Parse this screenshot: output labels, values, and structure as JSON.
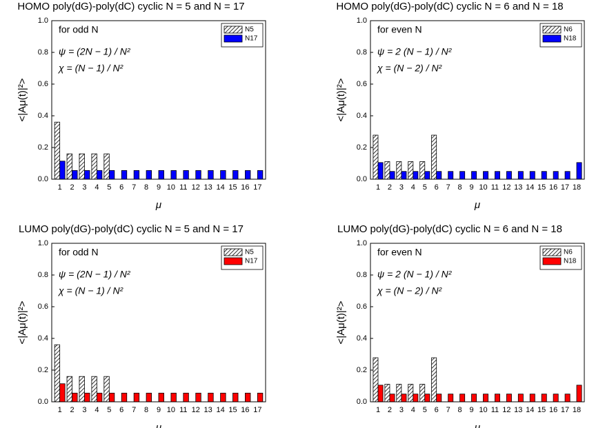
{
  "chart_data": [
    {
      "type": "bar",
      "title": "HOMO poly(dG)-poly(dC) cyclic  N = 5 and N = 17",
      "xlabel": "μ",
      "ylabel": "<|Aμ(t)|²>",
      "annotations": [
        "for odd N",
        "ψ = (2N − 1) / N²",
        "χ = (N − 1) / N²"
      ],
      "categories": [
        "1",
        "2",
        "3",
        "4",
        "5",
        "6",
        "7",
        "8",
        "9",
        "10",
        "11",
        "12",
        "13",
        "14",
        "15",
        "16",
        "17"
      ],
      "series": [
        {
          "name": "N5",
          "color": "#ffffff",
          "hatch": true,
          "values": [
            0.36,
            0.16,
            0.16,
            0.16,
            0.16,
            null,
            null,
            null,
            null,
            null,
            null,
            null,
            null,
            null,
            null,
            null,
            null
          ]
        },
        {
          "name": "N17",
          "color": "#0000ff",
          "values": [
            0.114,
            0.055,
            0.055,
            0.055,
            0.055,
            0.055,
            0.055,
            0.055,
            0.055,
            0.055,
            0.055,
            0.055,
            0.055,
            0.055,
            0.055,
            0.055,
            0.055
          ]
        }
      ],
      "ylim": [
        0,
        1
      ],
      "yticks": [
        {
          "value": 0,
          "label": "0.0"
        },
        {
          "value": 0.2,
          "label": "0.2"
        },
        {
          "value": 0.4,
          "label": "0.4"
        },
        {
          "value": 0.6,
          "label": "0.6"
        },
        {
          "value": 0.8,
          "label": "0.8"
        },
        {
          "value": 1,
          "label": "1.0"
        }
      ],
      "legend": "upper right"
    },
    {
      "type": "bar",
      "title": "HOMO poly(dG)-poly(dC) cyclic  N = 6 and N = 18",
      "xlabel": "μ",
      "ylabel": "<|Aμ(t)|²>",
      "annotations": [
        "for even N",
        "ψ = 2 (N − 1) / N²",
        "χ = (N − 2) / N²"
      ],
      "categories": [
        "1",
        "2",
        "3",
        "4",
        "5",
        "6",
        "7",
        "8",
        "9",
        "10",
        "11",
        "12",
        "13",
        "14",
        "15",
        "16",
        "17",
        "18"
      ],
      "series": [
        {
          "name": "N6",
          "color": "#ffffff",
          "hatch": true,
          "values": [
            0.278,
            0.111,
            0.111,
            0.111,
            0.111,
            0.278,
            null,
            null,
            null,
            null,
            null,
            null,
            null,
            null,
            null,
            null,
            null,
            null
          ]
        },
        {
          "name": "N18",
          "color": "#0000ff",
          "values": [
            0.105,
            0.049,
            0.049,
            0.049,
            0.049,
            0.049,
            0.049,
            0.049,
            0.049,
            0.049,
            0.049,
            0.049,
            0.049,
            0.049,
            0.049,
            0.049,
            0.049,
            0.105
          ]
        }
      ],
      "ylim": [
        0,
        1
      ],
      "yticks": [
        {
          "value": 0,
          "label": "0.0"
        },
        {
          "value": 0.2,
          "label": "0.2"
        },
        {
          "value": 0.4,
          "label": "0.4"
        },
        {
          "value": 0.6,
          "label": "0.6"
        },
        {
          "value": 0.8,
          "label": "0.8"
        },
        {
          "value": 1,
          "label": "1.0"
        }
      ],
      "legend": "upper right"
    },
    {
      "type": "bar",
      "title": "LUMO poly(dG)-poly(dC) cyclic  N = 5 and N = 17",
      "xlabel": "μ",
      "ylabel": "<|Aμ(t)|²>",
      "annotations": [
        "for odd N",
        "ψ = (2N − 1) / N²",
        "χ = (N − 1) / N²"
      ],
      "categories": [
        "1",
        "2",
        "3",
        "4",
        "5",
        "6",
        "7",
        "8",
        "9",
        "10",
        "11",
        "12",
        "13",
        "14",
        "15",
        "16",
        "17"
      ],
      "series": [
        {
          "name": "N5",
          "color": "#ffffff",
          "hatch": true,
          "values": [
            0.36,
            0.16,
            0.16,
            0.16,
            0.16,
            null,
            null,
            null,
            null,
            null,
            null,
            null,
            null,
            null,
            null,
            null,
            null
          ]
        },
        {
          "name": "N17",
          "color": "#ff0000",
          "values": [
            0.114,
            0.055,
            0.055,
            0.055,
            0.055,
            0.055,
            0.055,
            0.055,
            0.055,
            0.055,
            0.055,
            0.055,
            0.055,
            0.055,
            0.055,
            0.055,
            0.055
          ]
        }
      ],
      "ylim": [
        0,
        1
      ],
      "yticks": [
        {
          "value": 0,
          "label": "0.0"
        },
        {
          "value": 0.2,
          "label": "0.2"
        },
        {
          "value": 0.4,
          "label": "0.4"
        },
        {
          "value": 0.6,
          "label": "0.6"
        },
        {
          "value": 0.8,
          "label": "0.8"
        },
        {
          "value": 1,
          "label": "1.0"
        }
      ],
      "legend": "upper right"
    },
    {
      "type": "bar",
      "title": "LUMO poly(dG)-poly(dC) cyclic  N = 6 and N = 18",
      "xlabel": "μ",
      "ylabel": "<|Aμ(t)|²>",
      "annotations": [
        "for even N",
        "ψ = 2 (N − 1) / N²",
        "χ = (N − 2) / N²"
      ],
      "categories": [
        "1",
        "2",
        "3",
        "4",
        "5",
        "6",
        "7",
        "8",
        "9",
        "10",
        "11",
        "12",
        "13",
        "14",
        "15",
        "16",
        "17",
        "18"
      ],
      "series": [
        {
          "name": "N6",
          "color": "#ffffff",
          "hatch": true,
          "values": [
            0.278,
            0.111,
            0.111,
            0.111,
            0.111,
            0.278,
            null,
            null,
            null,
            null,
            null,
            null,
            null,
            null,
            null,
            null,
            null,
            null
          ]
        },
        {
          "name": "N18",
          "color": "#ff0000",
          "values": [
            0.105,
            0.049,
            0.049,
            0.049,
            0.049,
            0.049,
            0.049,
            0.049,
            0.049,
            0.049,
            0.049,
            0.049,
            0.049,
            0.049,
            0.049,
            0.049,
            0.049,
            0.105
          ]
        }
      ],
      "ylim": [
        0,
        1
      ],
      "yticks": [
        {
          "value": 0,
          "label": "0.0"
        },
        {
          "value": 0.2,
          "label": "0.2"
        },
        {
          "value": 0.4,
          "label": "0.4"
        },
        {
          "value": 0.6,
          "label": "0.6"
        },
        {
          "value": 0.8,
          "label": "0.8"
        },
        {
          "value": 1,
          "label": "1.0"
        }
      ],
      "legend": "upper right"
    }
  ]
}
